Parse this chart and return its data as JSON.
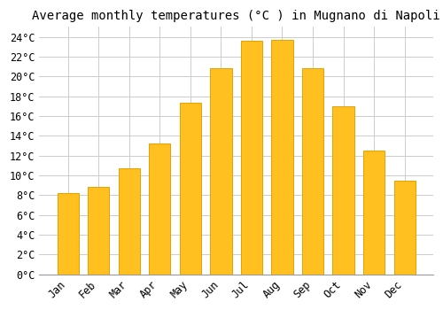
{
  "title": "Average monthly temperatures (°C ) in Mugnano di Napoli",
  "months": [
    "Jan",
    "Feb",
    "Mar",
    "Apr",
    "May",
    "Jun",
    "Jul",
    "Aug",
    "Sep",
    "Oct",
    "Nov",
    "Dec"
  ],
  "values": [
    8.2,
    8.8,
    10.7,
    13.2,
    17.3,
    20.8,
    23.6,
    23.7,
    20.8,
    17.0,
    12.5,
    9.5
  ],
  "bar_color": "#FFC020",
  "bar_edge_color": "#E8A000",
  "figure_bg_color": "#FFFFFF",
  "plot_bg_color": "#FFFFFF",
  "grid_color": "#CCCCCC",
  "ylim": [
    0,
    25
  ],
  "ytick_step": 2,
  "title_fontsize": 10,
  "tick_fontsize": 8.5,
  "tick_font_family": "monospace",
  "bar_width": 0.7
}
